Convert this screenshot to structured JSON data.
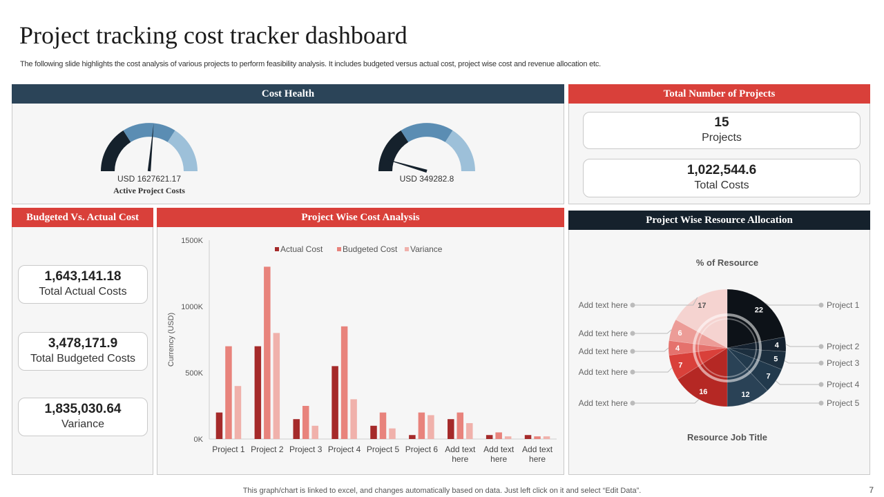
{
  "title": "Project tracking cost tracker dashboard",
  "subtitle": "The following slide highlights the cost analysis of various projects to perform feasibility analysis. It includes budgeted versus actual cost, project wise cost and revenue allocation etc.",
  "footer": "This graph/chart is linked to excel,  and changes automatically based on data. Just left click on it and select “Edit Data”.",
  "page_number": "7",
  "colors": {
    "navy": "#2b4458",
    "red": "#d9403a",
    "dark": "#15212c",
    "actual": "#a52a2a",
    "budgeted": "#e8837c",
    "variance": "#f0b1ab"
  },
  "cost_health": {
    "header": "Cost Health",
    "gauge1": {
      "label": "USD 1627621.17",
      "sublabel": "Active Project Costs",
      "needle_fraction": 0.53
    },
    "gauge2": {
      "label": "USD 349282.8",
      "needle_fraction": 0.09
    }
  },
  "total_projects": {
    "header": "Total Number  of Projects",
    "count": "15",
    "count_label": "Projects",
    "total_costs": "1,022,544.6",
    "total_costs_label": "Total Costs"
  },
  "budget_vs_actual": {
    "header": "Budgeted Vs. Actual  Cost",
    "items": [
      {
        "value": "1,643,141.18",
        "label": "Total Actual Costs"
      },
      {
        "value": "3,478,171.9",
        "label": "Total Budgeted Costs"
      },
      {
        "value": "1,835,030.64",
        "label": "Variance"
      }
    ]
  },
  "project_wise": {
    "header": "Project  Wise Cost Analysis"
  },
  "resource": {
    "header": "Project  Wise Resource Allocation"
  },
  "chart_data": [
    {
      "type": "bar",
      "title": "Project  Wise Cost Analysis",
      "ylabel": "Currency (USD)",
      "xlabel": "",
      "ylim": [
        0,
        1500
      ],
      "yticks": [
        0,
        500,
        1000,
        1500
      ],
      "ytick_labels": [
        "0K",
        "500K",
        "1000K",
        "1500K"
      ],
      "legend_position": "top",
      "categories": [
        "Project 1",
        "Project 2",
        "Project 3",
        "Project 4",
        "Project 5",
        "Project 6",
        "Add text here",
        "Add text here",
        "Add text here"
      ],
      "series": [
        {
          "name": "Actual Cost",
          "color": "#a52a2a",
          "values": [
            200,
            700,
            150,
            550,
            100,
            30,
            150,
            30,
            30
          ]
        },
        {
          "name": "Budgeted Cost",
          "color": "#e8837c",
          "values": [
            700,
            1300,
            250,
            850,
            200,
            200,
            200,
            50,
            20
          ]
        },
        {
          "name": "Variance",
          "color": "#f0b1ab",
          "values": [
            400,
            800,
            100,
            300,
            80,
            180,
            120,
            20,
            20
          ]
        }
      ]
    },
    {
      "type": "pie",
      "title": "% of Resource",
      "xlabel": "Resource Job Title",
      "slices": [
        {
          "label": "Project 1",
          "value": 22,
          "color": "#0d1218"
        },
        {
          "label": "Project 2",
          "value": 4,
          "color": "#152230"
        },
        {
          "label": "Project 3",
          "value": 5,
          "color": "#1c2f3f"
        },
        {
          "label": "Project 4",
          "value": 7,
          "color": "#223a4d"
        },
        {
          "label": "Project 5",
          "value": 12,
          "color": "#2a4256"
        },
        {
          "label": "Add text here",
          "value": 16,
          "color": "#b52824"
        },
        {
          "label": "Add text here",
          "value": 7,
          "color": "#d9403a"
        },
        {
          "label": "Add text here",
          "value": 4,
          "color": "#e5726d"
        },
        {
          "label": "Add text here",
          "value": 6,
          "color": "#ec9c97"
        },
        {
          "label": "Add text here",
          "value": 17,
          "color": "#f5d3d0"
        }
      ]
    }
  ]
}
